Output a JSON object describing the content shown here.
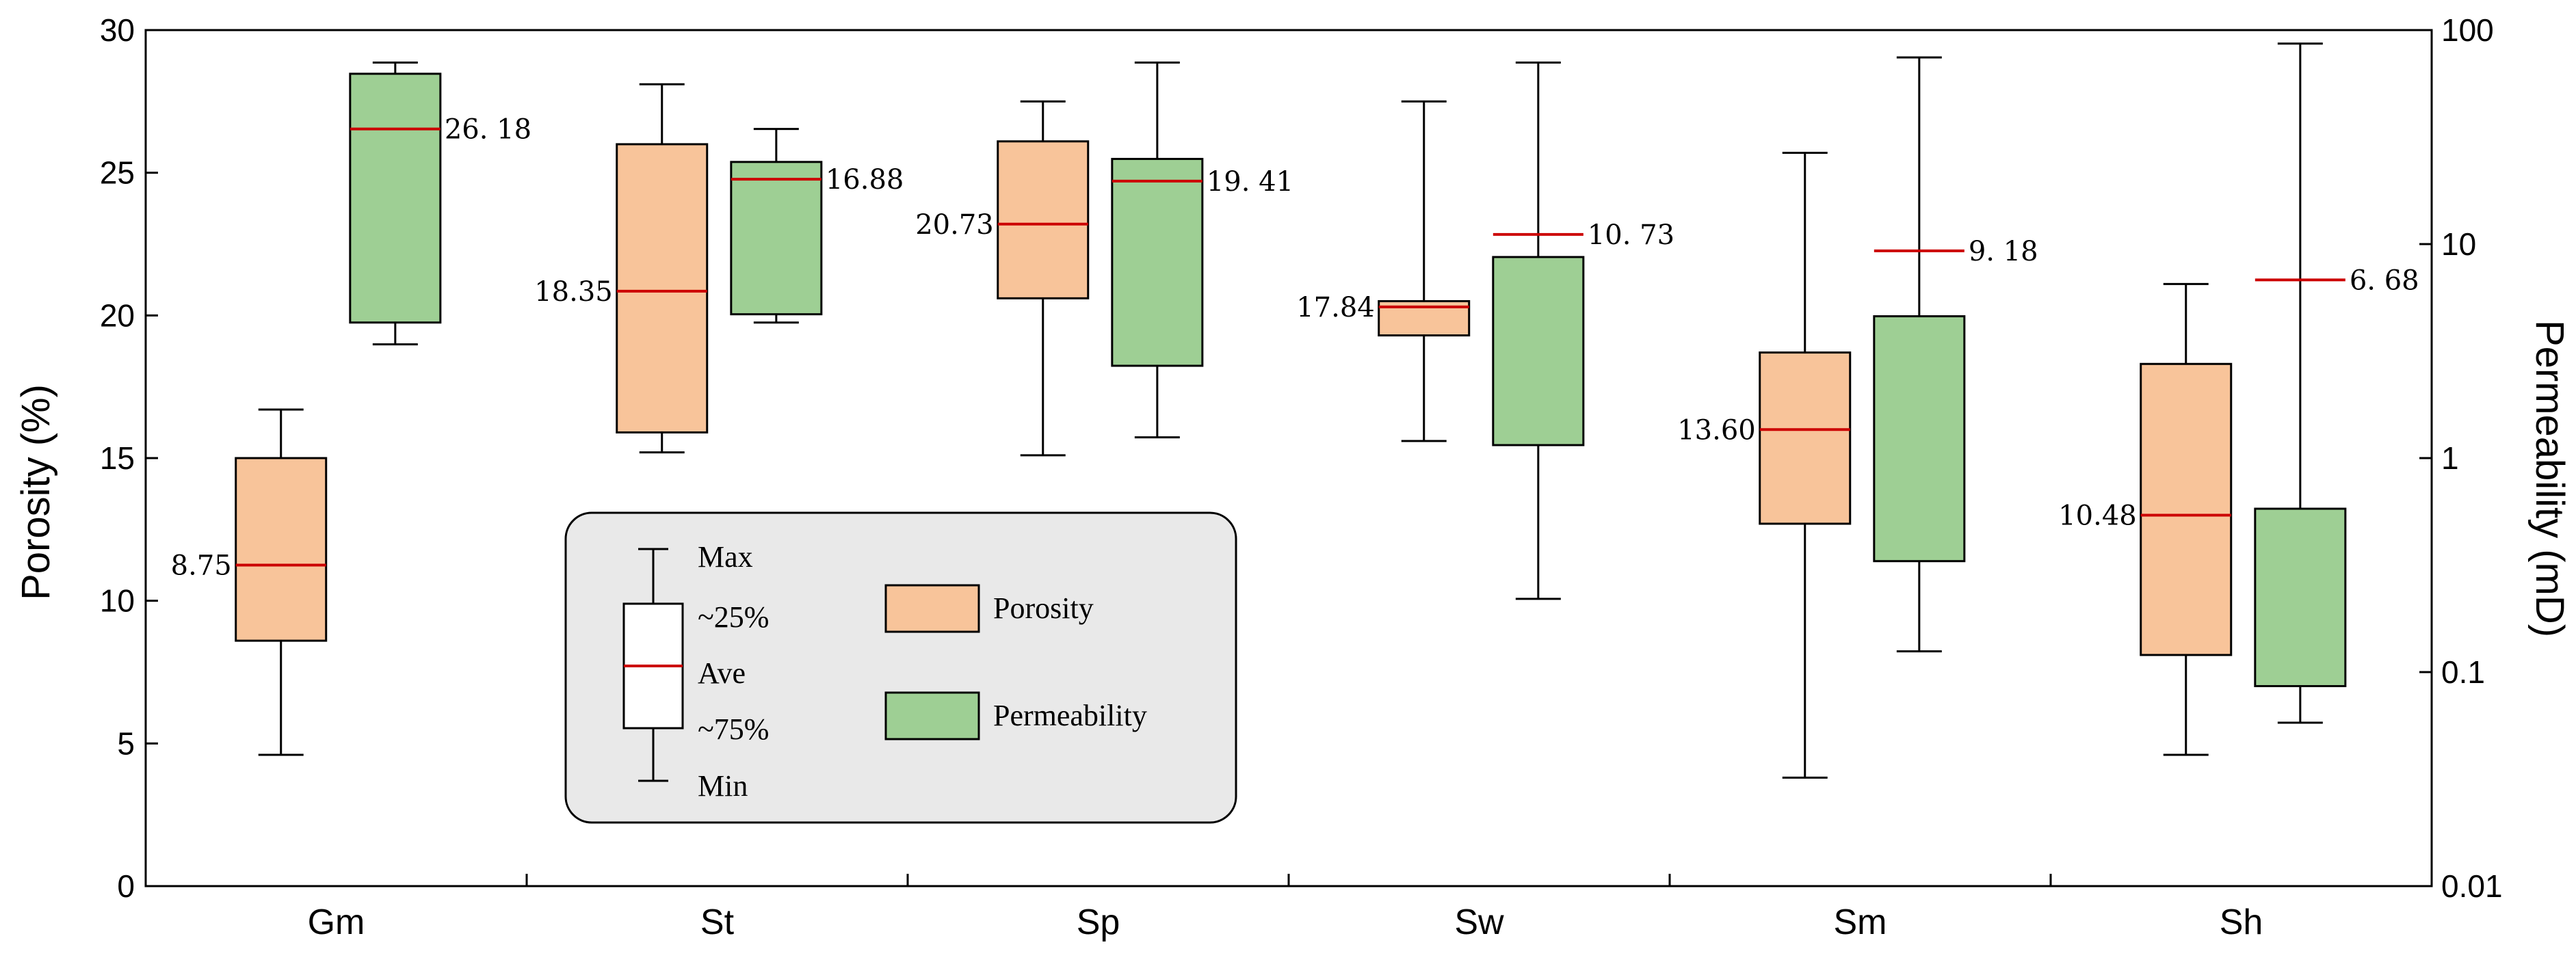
{
  "chart_data": {
    "type": "boxplot",
    "categories": [
      "Gm",
      "St",
      "Sp",
      "Sw",
      "Sm",
      "Sh"
    ],
    "y_left": {
      "label": "Porosity (%)",
      "range": [
        0,
        30
      ],
      "ticks": [
        0,
        5,
        10,
        15,
        20,
        25,
        30
      ],
      "tick_labels": [
        "0",
        "5",
        "10",
        "15",
        "20",
        "25",
        "30"
      ]
    },
    "y_right": {
      "label": "Permeability (mD)",
      "scale": "log",
      "range": [
        0.01,
        100
      ],
      "ticks": [
        0.01,
        0.1,
        1,
        10,
        100
      ],
      "tick_labels": [
        "0.01",
        "0.1",
        "1",
        "10",
        "100"
      ]
    },
    "series": [
      {
        "name": "Porosity",
        "axis": "left",
        "color": "#f8c49a",
        "boxes": [
          {
            "category": "Gm",
            "min": 4.6,
            "q1": 8.6,
            "mean": 11.25,
            "q3": 15.0,
            "max": 16.7,
            "label": "8.75"
          },
          {
            "category": "St",
            "min": 15.2,
            "q1": 15.9,
            "mean": 20.85,
            "q3": 26.0,
            "max": 28.1,
            "label": "18.35"
          },
          {
            "category": "Sp",
            "min": 15.1,
            "q1": 20.6,
            "mean": 23.2,
            "q3": 26.1,
            "max": 27.5,
            "label": "20.73"
          },
          {
            "category": "Sw",
            "min": 15.6,
            "q1": 19.3,
            "mean": 20.3,
            "q3": 20.5,
            "max": 27.5,
            "label": "17.84"
          },
          {
            "category": "Sm",
            "min": 3.8,
            "q1": 12.7,
            "mean": 16.0,
            "q3": 18.7,
            "max": 25.7,
            "label": "13.60"
          },
          {
            "category": "Sh",
            "min": 4.6,
            "q1": 8.1,
            "mean": 13.0,
            "q3": 18.3,
            "max": 21.1,
            "label": "10.48"
          }
        ]
      },
      {
        "name": "Permeability",
        "axis": "right",
        "color": "#9ecf94",
        "boxes": [
          {
            "category": "Gm",
            "min": 3.4,
            "q1": 4.3,
            "mean": 34.5,
            "q3": 62.5,
            "max": 70.5,
            "label": "26. 18"
          },
          {
            "category": "St",
            "min": 4.3,
            "q1": 4.7,
            "mean": 20.1,
            "q3": 24.2,
            "max": 34.5,
            "label": "16.88"
          },
          {
            "category": "Sp",
            "min": 1.25,
            "q1": 2.7,
            "mean": 19.7,
            "q3": 25.0,
            "max": 70.5,
            "label": "19. 41"
          },
          {
            "category": "Sw",
            "min": 0.22,
            "q1": 1.15,
            "mean": 11.1,
            "q3": 8.7,
            "max": 70.5,
            "label": "10. 73"
          },
          {
            "category": "Sm",
            "min": 0.125,
            "q1": 0.33,
            "mean": 9.3,
            "q3": 4.6,
            "max": 74.5,
            "label": "9. 18"
          },
          {
            "category": "Sh",
            "min": 0.058,
            "q1": 0.086,
            "mean": 6.8,
            "q3": 0.58,
            "max": 86.5,
            "label": "6. 68"
          }
        ]
      }
    ],
    "legend": {
      "position": "inside-lower-left",
      "key_labels": [
        "Max",
        "~25%",
        "Ave",
        "~75%",
        "Min"
      ],
      "series_labels": [
        "Porosity",
        "Permeability"
      ]
    }
  }
}
